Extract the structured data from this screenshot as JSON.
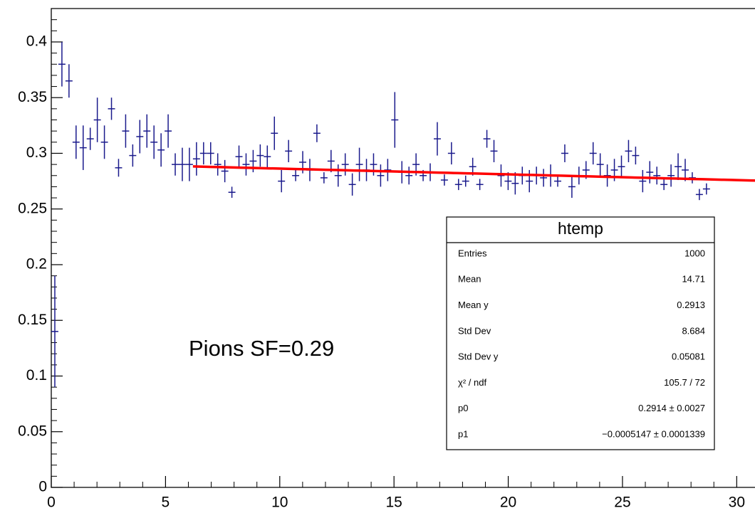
{
  "chart_data": {
    "type": "profile",
    "x": [
      0.155,
      0.465,
      0.775,
      1.085,
      1.395,
      1.705,
      2.015,
      2.325,
      2.635,
      2.945,
      3.255,
      3.565,
      3.875,
      4.185,
      4.495,
      4.805,
      5.115,
      5.425,
      5.735,
      6.045,
      6.355,
      6.665,
      6.975,
      7.285,
      7.595,
      7.905,
      8.215,
      8.525,
      8.835,
      9.145,
      9.455,
      9.765,
      10.075,
      10.385,
      10.695,
      11.005,
      11.315,
      11.625,
      11.935,
      12.245,
      12.555,
      12.865,
      13.175,
      13.485,
      13.795,
      14.105,
      14.415,
      14.725,
      15.035,
      15.345,
      15.655,
      15.965,
      16.275,
      16.585,
      16.895,
      17.205,
      17.515,
      17.825,
      18.135,
      18.445,
      18.755,
      19.065,
      19.375,
      19.685,
      19.995,
      20.305,
      20.615,
      20.925,
      21.235,
      21.545,
      21.855,
      22.165,
      22.475,
      22.785,
      23.095,
      23.405,
      23.715,
      24.025,
      24.335,
      24.645,
      24.955,
      25.265,
      25.575,
      25.885,
      26.195,
      26.505,
      26.815,
      27.125,
      27.435,
      27.745,
      28.055,
      28.365,
      28.675
    ],
    "values": [
      0.14,
      0.38,
      0.365,
      0.31,
      0.305,
      0.313,
      0.33,
      0.31,
      0.34,
      0.287,
      0.32,
      0.298,
      0.315,
      0.32,
      0.31,
      0.303,
      0.32,
      0.29,
      0.29,
      0.29,
      0.295,
      0.3,
      0.3,
      0.29,
      0.284,
      0.265,
      0.297,
      0.29,
      0.293,
      0.298,
      0.297,
      0.318,
      0.275,
      0.302,
      0.28,
      0.292,
      0.285,
      0.318,
      0.278,
      0.293,
      0.28,
      0.29,
      0.272,
      0.29,
      0.285,
      0.29,
      0.28,
      0.285,
      0.33,
      0.283,
      0.28,
      0.29,
      0.28,
      0.283,
      0.313,
      0.276,
      0.3,
      0.272,
      0.275,
      0.288,
      0.272,
      0.313,
      0.302,
      0.28,
      0.275,
      0.273,
      0.28,
      0.275,
      0.28,
      0.278,
      0.28,
      0.275,
      0.3,
      0.27,
      0.28,
      0.285,
      0.3,
      0.29,
      0.28,
      0.285,
      0.288,
      0.302,
      0.298,
      0.275,
      0.283,
      0.28,
      0.272,
      0.28,
      0.288,
      0.285,
      0.278,
      0.263,
      0.268
    ],
    "errors": [
      0.05,
      0.02,
      0.015,
      0.015,
      0.02,
      0.01,
      0.02,
      0.015,
      0.01,
      0.008,
      0.015,
      0.01,
      0.015,
      0.015,
      0.015,
      0.015,
      0.015,
      0.01,
      0.015,
      0.015,
      0.015,
      0.01,
      0.01,
      0.01,
      0.01,
      0.005,
      0.01,
      0.01,
      0.01,
      0.01,
      0.01,
      0.015,
      0.01,
      0.01,
      0.005,
      0.01,
      0.01,
      0.008,
      0.005,
      0.01,
      0.01,
      0.01,
      0.01,
      0.015,
      0.01,
      0.01,
      0.01,
      0.01,
      0.025,
      0.01,
      0.008,
      0.01,
      0.005,
      0.008,
      0.015,
      0.005,
      0.01,
      0.005,
      0.005,
      0.008,
      0.005,
      0.008,
      0.01,
      0.01,
      0.008,
      0.01,
      0.008,
      0.01,
      0.008,
      0.008,
      0.01,
      0.005,
      0.008,
      0.01,
      0.008,
      0.008,
      0.01,
      0.01,
      0.01,
      0.01,
      0.01,
      0.01,
      0.008,
      0.01,
      0.01,
      0.008,
      0.005,
      0.01,
      0.012,
      0.01,
      0.005,
      0.005,
      0.005
    ],
    "color": "#1a1a8c",
    "fit": {
      "p0": 0.2914,
      "p1": -0.0005147,
      "xmin": 6.2,
      "xmax": 31,
      "color": "#ff0000"
    },
    "xlim": [
      0,
      30.8
    ],
    "ylim": [
      0,
      0.43
    ],
    "xticks": [
      0,
      5,
      10,
      15,
      20,
      25,
      30
    ],
    "yticks": [
      0,
      0.05,
      0.1,
      0.15,
      0.2,
      0.25,
      0.3,
      0.35,
      0.4
    ],
    "annotation": "Pions SF=0.29",
    "stats_box": {
      "title": "htemp",
      "rows": [
        [
          "Entries",
          "1000"
        ],
        [
          "Mean",
          "14.71"
        ],
        [
          "Mean y",
          "0.2913"
        ],
        [
          "Std Dev",
          "8.684"
        ],
        [
          "Std Dev y",
          "0.05081"
        ],
        [
          "χ² / ndf",
          "105.7 / 72"
        ],
        [
          "p0",
          "0.2914 ± 0.0027"
        ],
        [
          "p1",
          "−0.0005147 ± 0.0001339"
        ]
      ]
    }
  }
}
